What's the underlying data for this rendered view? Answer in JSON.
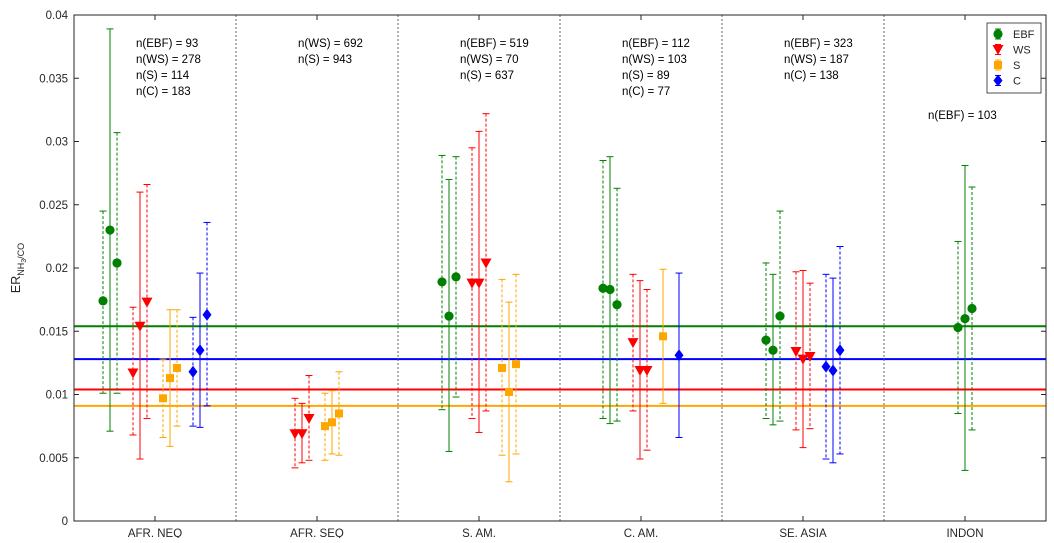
{
  "chart_data": {
    "type": "scatter",
    "ylabel_main": "ER",
    "ylabel_sub_prefix": "NH",
    "ylabel_sub_num": "3",
    "ylabel_sub_suffix": "/CO",
    "xlabel": "",
    "ylim": [
      0,
      0.04
    ],
    "yticks": [
      "0",
      "0.005",
      "0.01",
      "0.015",
      "0.02",
      "0.025",
      "0.03",
      "0.035",
      "0.04"
    ],
    "ytick_values": [
      0,
      0.005,
      0.01,
      0.015,
      0.02,
      0.025,
      0.03,
      0.035,
      0.04
    ],
    "categories": [
      "AFR. NEQ",
      "AFR. SEQ",
      "S. AM.",
      "C. AM.",
      "SE. ASIA",
      "INDON"
    ],
    "grid": false,
    "legend_position": "top-right",
    "series": [
      {
        "name": "EBF",
        "color": "#008000",
        "marker": "circle"
      },
      {
        "name": "WS",
        "color": "#ff0000",
        "marker": "triangle-down"
      },
      {
        "name": "S",
        "color": "#ffa500",
        "marker": "square"
      },
      {
        "name": "C",
        "color": "#0000ff",
        "marker": "diamond"
      }
    ],
    "reference_lines": [
      {
        "series": "EBF",
        "y": 0.0154,
        "color": "#008000"
      },
      {
        "series": "C",
        "y": 0.0128,
        "color": "#0000ff"
      },
      {
        "series": "WS",
        "y": 0.0104,
        "color": "#ff0000"
      },
      {
        "series": "S",
        "y": 0.0091,
        "color": "#ffa500"
      }
    ],
    "annotations": [
      {
        "category": "AFR. NEQ",
        "lines": [
          "n(EBF) = 93",
          "n(WS) = 278",
          "n(S) = 114",
          "n(C) = 183"
        ]
      },
      {
        "category": "AFR. SEQ",
        "lines": [
          "n(WS) = 692",
          "n(S) = 943"
        ]
      },
      {
        "category": "S. AM.",
        "lines": [
          "n(EBF) = 519",
          "n(WS) = 70",
          "n(S) = 637"
        ]
      },
      {
        "category": "C. AM.",
        "lines": [
          "n(EBF) = 112",
          "n(WS) = 103",
          "n(S) = 89",
          "n(C) = 77"
        ]
      },
      {
        "category": "SE. ASIA",
        "lines": [
          "n(EBF) = 323",
          "n(WS) = 187",
          "n(C) = 138"
        ]
      },
      {
        "category": "INDON",
        "lines": [
          "n(EBF) = 103"
        ]
      }
    ],
    "points": [
      {
        "category": "AFR. NEQ",
        "series": "EBF",
        "y": 0.0174,
        "low": 0.0101,
        "high": 0.0245,
        "dashed": true
      },
      {
        "category": "AFR. NEQ",
        "series": "EBF",
        "y": 0.023,
        "low": 0.0071,
        "high": 0.0389,
        "dashed": false
      },
      {
        "category": "AFR. NEQ",
        "series": "EBF",
        "y": 0.0204,
        "low": 0.0101,
        "high": 0.0307,
        "dashed": true
      },
      {
        "category": "AFR. NEQ",
        "series": "WS",
        "y": 0.0117,
        "low": 0.0068,
        "high": 0.0169,
        "dashed": true
      },
      {
        "category": "AFR. NEQ",
        "series": "WS",
        "y": 0.0154,
        "low": 0.0049,
        "high": 0.026,
        "dashed": false
      },
      {
        "category": "AFR. NEQ",
        "series": "WS",
        "y": 0.0173,
        "low": 0.0081,
        "high": 0.0266,
        "dashed": true
      },
      {
        "category": "AFR. NEQ",
        "series": "S",
        "y": 0.0097,
        "low": 0.0066,
        "high": 0.0128,
        "dashed": true
      },
      {
        "category": "AFR. NEQ",
        "series": "S",
        "y": 0.0113,
        "low": 0.0059,
        "high": 0.0167,
        "dashed": false
      },
      {
        "category": "AFR. NEQ",
        "series": "S",
        "y": 0.0121,
        "low": 0.0075,
        "high": 0.0167,
        "dashed": true
      },
      {
        "category": "AFR. NEQ",
        "series": "C",
        "y": 0.0118,
        "low": 0.0075,
        "high": 0.0161,
        "dashed": true
      },
      {
        "category": "AFR. NEQ",
        "series": "C",
        "y": 0.0135,
        "low": 0.0074,
        "high": 0.0196,
        "dashed": false
      },
      {
        "category": "AFR. NEQ",
        "series": "C",
        "y": 0.0163,
        "low": 0.0091,
        "high": 0.0236,
        "dashed": true
      },
      {
        "category": "AFR. SEQ",
        "series": "WS",
        "y": 0.0069,
        "low": 0.0042,
        "high": 0.0097,
        "dashed": true
      },
      {
        "category": "AFR. SEQ",
        "series": "WS",
        "y": 0.0069,
        "low": 0.0046,
        "high": 0.0093,
        "dashed": false
      },
      {
        "category": "AFR. SEQ",
        "series": "WS",
        "y": 0.0081,
        "low": 0.0048,
        "high": 0.0115,
        "dashed": true
      },
      {
        "category": "AFR. SEQ",
        "series": "S",
        "y": 0.0075,
        "low": 0.0048,
        "high": 0.0101,
        "dashed": true
      },
      {
        "category": "AFR. SEQ",
        "series": "S",
        "y": 0.0078,
        "low": 0.0053,
        "high": 0.0103,
        "dashed": false
      },
      {
        "category": "AFR. SEQ",
        "series": "S",
        "y": 0.0085,
        "low": 0.0052,
        "high": 0.0118,
        "dashed": true
      },
      {
        "category": "S. AM.",
        "series": "EBF",
        "y": 0.0189,
        "low": 0.0088,
        "high": 0.0289,
        "dashed": true
      },
      {
        "category": "S. AM.",
        "series": "EBF",
        "y": 0.0162,
        "low": 0.0055,
        "high": 0.027,
        "dashed": false
      },
      {
        "category": "S. AM.",
        "series": "EBF",
        "y": 0.0193,
        "low": 0.0098,
        "high": 0.0288,
        "dashed": true
      },
      {
        "category": "S. AM.",
        "series": "WS",
        "y": 0.0188,
        "low": 0.0081,
        "high": 0.0295,
        "dashed": true
      },
      {
        "category": "S. AM.",
        "series": "WS",
        "y": 0.0188,
        "low": 0.007,
        "high": 0.0308,
        "dashed": false
      },
      {
        "category": "S. AM.",
        "series": "WS",
        "y": 0.0204,
        "low": 0.0087,
        "high": 0.0322,
        "dashed": true
      },
      {
        "category": "S. AM.",
        "series": "S",
        "y": 0.0121,
        "low": 0.0052,
        "high": 0.0191,
        "dashed": true
      },
      {
        "category": "S. AM.",
        "series": "S",
        "y": 0.0102,
        "low": 0.0031,
        "high": 0.0173,
        "dashed": false
      },
      {
        "category": "S. AM.",
        "series": "S",
        "y": 0.0124,
        "low": 0.0053,
        "high": 0.0195,
        "dashed": true
      },
      {
        "category": "C. AM.",
        "series": "EBF",
        "y": 0.0184,
        "low": 0.0081,
        "high": 0.0285,
        "dashed": true
      },
      {
        "category": "C. AM.",
        "series": "EBF",
        "y": 0.0183,
        "low": 0.0077,
        "high": 0.0288,
        "dashed": false
      },
      {
        "category": "C. AM.",
        "series": "EBF",
        "y": 0.0171,
        "low": 0.0079,
        "high": 0.0263,
        "dashed": true
      },
      {
        "category": "C. AM.",
        "series": "WS",
        "y": 0.0141,
        "low": 0.0087,
        "high": 0.0195,
        "dashed": true
      },
      {
        "category": "C. AM.",
        "series": "WS",
        "y": 0.0119,
        "low": 0.0049,
        "high": 0.019,
        "dashed": false
      },
      {
        "category": "C. AM.",
        "series": "WS",
        "y": 0.0119,
        "low": 0.0056,
        "high": 0.0183,
        "dashed": true
      },
      {
        "category": "C. AM.",
        "series": "S",
        "y": 0.0146,
        "low": 0.0093,
        "high": 0.0199,
        "dashed": false
      },
      {
        "category": "C. AM.",
        "series": "C",
        "y": 0.0131,
        "low": 0.0066,
        "high": 0.0196,
        "dashed": false
      },
      {
        "category": "SE. ASIA",
        "series": "EBF",
        "y": 0.0143,
        "low": 0.0081,
        "high": 0.0204,
        "dashed": true
      },
      {
        "category": "SE. ASIA",
        "series": "EBF",
        "y": 0.0135,
        "low": 0.0076,
        "high": 0.0195,
        "dashed": false
      },
      {
        "category": "SE. ASIA",
        "series": "EBF",
        "y": 0.0162,
        "low": 0.0079,
        "high": 0.0245,
        "dashed": true
      },
      {
        "category": "SE. ASIA",
        "series": "WS",
        "y": 0.0134,
        "low": 0.0072,
        "high": 0.0197,
        "dashed": true
      },
      {
        "category": "SE. ASIA",
        "series": "WS",
        "y": 0.0128,
        "low": 0.0058,
        "high": 0.0198,
        "dashed": false
      },
      {
        "category": "SE. ASIA",
        "series": "WS",
        "y": 0.013,
        "low": 0.0073,
        "high": 0.0188,
        "dashed": true
      },
      {
        "category": "SE. ASIA",
        "series": "C",
        "y": 0.0122,
        "low": 0.0049,
        "high": 0.0195,
        "dashed": true
      },
      {
        "category": "SE. ASIA",
        "series": "C",
        "y": 0.0119,
        "low": 0.0046,
        "high": 0.0192,
        "dashed": false
      },
      {
        "category": "SE. ASIA",
        "series": "C",
        "y": 0.0135,
        "low": 0.0053,
        "high": 0.0217,
        "dashed": true
      },
      {
        "category": "INDON",
        "series": "EBF",
        "y": 0.0153,
        "low": 0.0085,
        "high": 0.0221,
        "dashed": true
      },
      {
        "category": "INDON",
        "series": "EBF",
        "y": 0.016,
        "low": 0.004,
        "high": 0.0281,
        "dashed": false
      },
      {
        "category": "INDON",
        "series": "EBF",
        "y": 0.0168,
        "low": 0.0072,
        "high": 0.0264,
        "dashed": true
      }
    ]
  }
}
